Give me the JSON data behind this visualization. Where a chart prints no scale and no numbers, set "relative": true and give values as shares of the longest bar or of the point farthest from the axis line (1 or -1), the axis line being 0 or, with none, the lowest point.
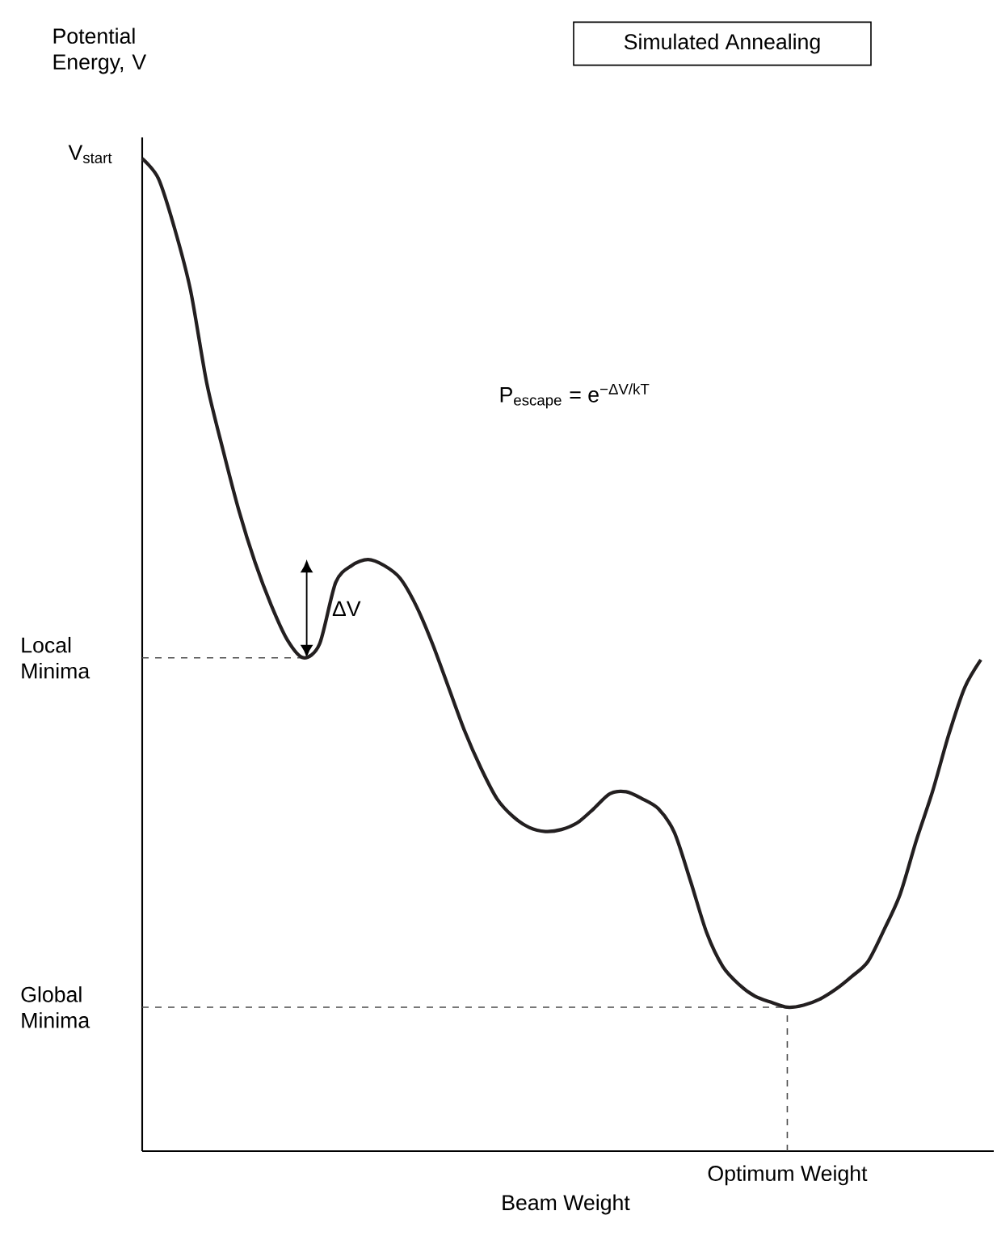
{
  "chart_data": {
    "type": "line",
    "title": "Simulated Annealing",
    "ylabel": "Potential Energy, V",
    "xlabel": "Beam Weight",
    "relative": true,
    "tick_labels": false,
    "color": "#231f20",
    "line_style": "solid",
    "categories": [
      null,
      null,
      null,
      null,
      null,
      null,
      null,
      null,
      null,
      null,
      null,
      null,
      null,
      null,
      null,
      null,
      null,
      null,
      null,
      null,
      null,
      null,
      null,
      null,
      null,
      null,
      null,
      null,
      null,
      null,
      null,
      null,
      null,
      null,
      null,
      null,
      null,
      null,
      null,
      null,
      null,
      null,
      null,
      null,
      null,
      null,
      null,
      null,
      null,
      null,
      null,
      null,
      null
    ],
    "values": [
      1.0,
      0.98,
      0.93,
      0.867,
      0.774,
      0.707,
      0.645,
      0.593,
      0.55,
      0.515,
      0.497,
      0.511,
      0.573,
      0.59,
      0.596,
      0.59,
      0.577,
      0.549,
      0.511,
      0.467,
      0.423,
      0.386,
      0.355,
      0.337,
      0.326,
      0.322,
      0.324,
      0.331,
      0.345,
      0.36,
      0.362,
      0.355,
      0.345,
      0.321,
      0.272,
      0.22,
      0.186,
      0.168,
      0.156,
      0.15,
      0.145,
      0.147,
      0.153,
      0.163,
      0.176,
      0.191,
      0.223,
      0.259,
      0.313,
      0.362,
      0.419,
      0.467,
      0.495
    ],
    "ref_lines": [
      {
        "axis": "y",
        "value": 0.497,
        "label": "Local Minima",
        "color": "#4c4c4c",
        "line_style": "dashed"
      },
      {
        "axis": "y",
        "value": 0.145,
        "label": "Global Minima",
        "color": "#4c4c4c",
        "line_style": "dashed"
      }
    ],
    "annotations": [
      "V$_{start}$",
      "Optimum Weight",
      {
        "text": "ΔV",
        "y": 0.596
      },
      "P$_{escape}$ = e$^{−ΔV/kT}$"
    ]
  }
}
